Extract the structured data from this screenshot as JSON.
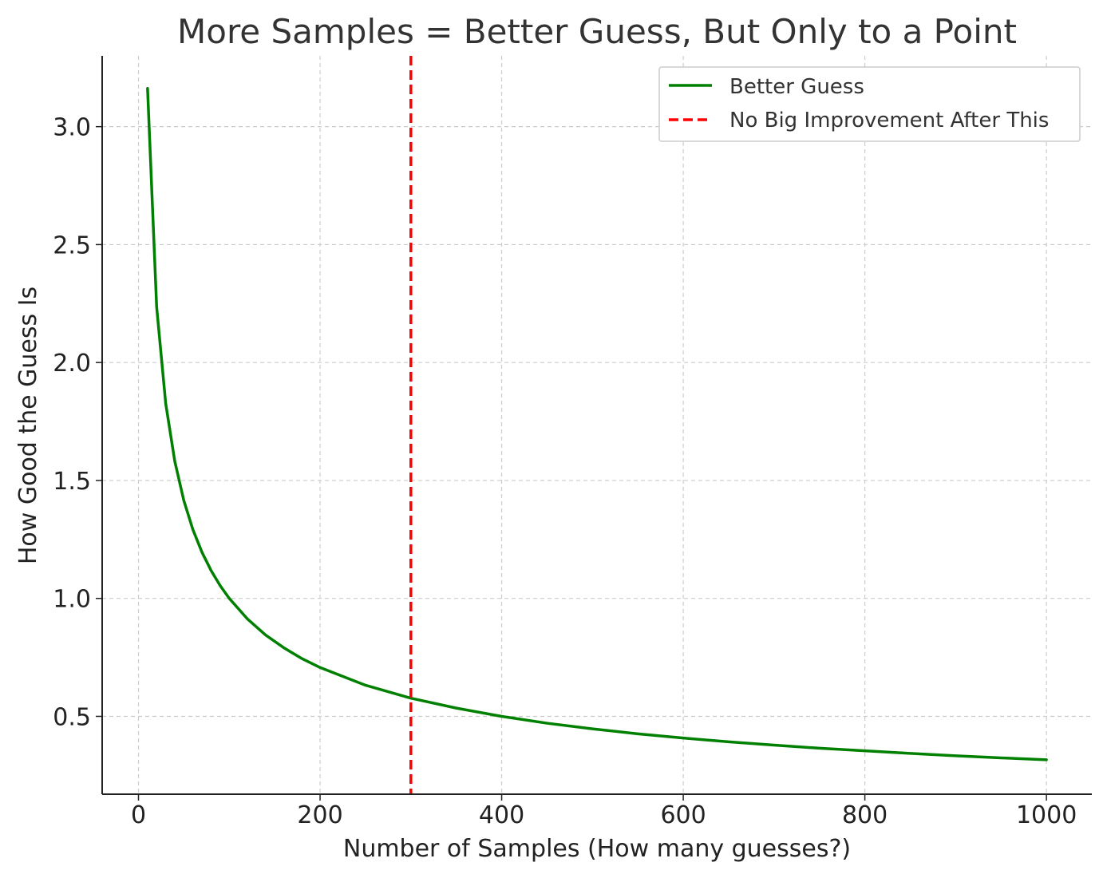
{
  "chart_data": {
    "type": "line",
    "title": "More Samples = Better Guess, But Only to a Point",
    "xlabel": "Number of Samples (How many guesses?)",
    "ylabel": "How Good the Guess Is",
    "xlim": [
      -40,
      1050
    ],
    "ylim": [
      0.17,
      3.3
    ],
    "xticks": [
      0,
      200,
      400,
      600,
      800,
      1000
    ],
    "xtick_labels": [
      "0",
      "200",
      "400",
      "600",
      "800",
      "1000"
    ],
    "yticks": [
      0.5,
      1.0,
      1.5,
      2.0,
      2.5,
      3.0
    ],
    "ytick_labels": [
      "0.5",
      "1.0",
      "1.5",
      "2.0",
      "2.5",
      "3.0"
    ],
    "grid": true,
    "legend_position": "top-right",
    "series": [
      {
        "name": "Better Guess",
        "color": "#008000",
        "style": "solid",
        "x": [
          10,
          20,
          30,
          40,
          50,
          60,
          70,
          80,
          90,
          100,
          120,
          140,
          160,
          180,
          200,
          250,
          300,
          350,
          400,
          450,
          500,
          550,
          600,
          650,
          700,
          750,
          800,
          850,
          900,
          950,
          1000
        ],
        "y": [
          3.162,
          2.236,
          1.826,
          1.581,
          1.414,
          1.291,
          1.195,
          1.118,
          1.054,
          1.0,
          0.913,
          0.845,
          0.791,
          0.745,
          0.707,
          0.632,
          0.577,
          0.535,
          0.5,
          0.471,
          0.447,
          0.426,
          0.408,
          0.392,
          0.378,
          0.365,
          0.354,
          0.343,
          0.333,
          0.324,
          0.316
        ]
      },
      {
        "name": "No Big Improvement After This",
        "color": "#ff0000",
        "style": "dashed",
        "type": "vline",
        "x": 300
      }
    ]
  }
}
